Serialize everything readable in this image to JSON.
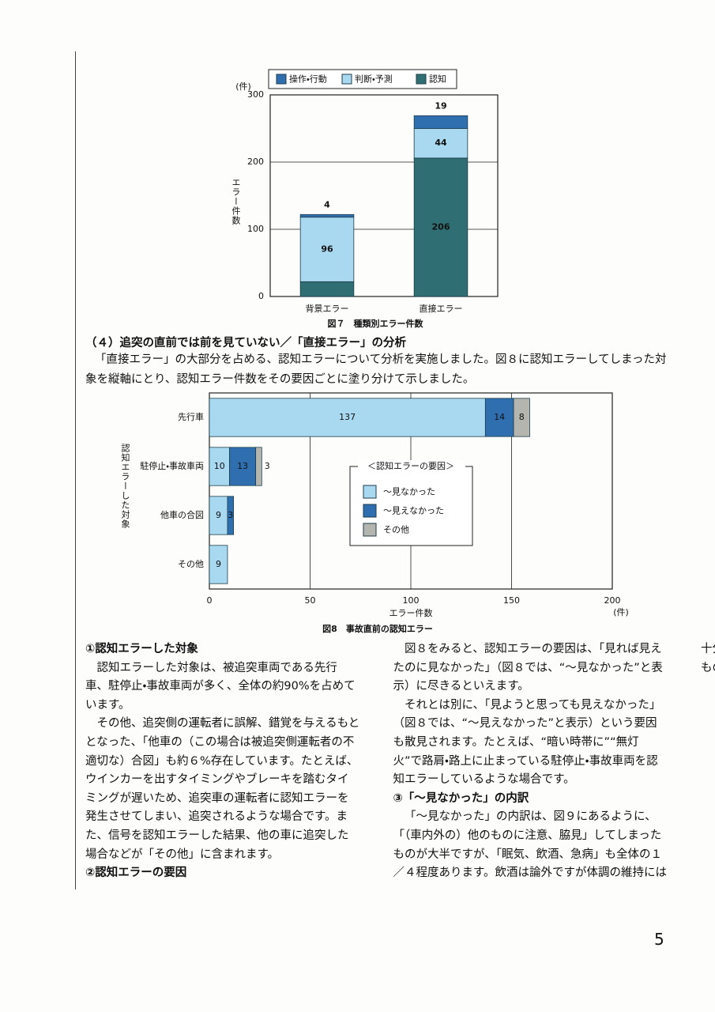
{
  "chart_data": [
    {
      "type": "bar",
      "orientation": "vertical",
      "stacked": true,
      "title": "図７　種類別エラー件数",
      "y_label": "エラー件数",
      "y_unit": "(件)",
      "categories": [
        "背景エラー",
        "直接エラー"
      ],
      "series": [
        {
          "name": "認知",
          "color": "#2f6e72",
          "values": [
            22,
            206
          ]
        },
        {
          "name": "判断・予測",
          "color": "#a9d9f0",
          "values": [
            96,
            44
          ]
        },
        {
          "name": "操作・行動",
          "color": "#2f6fb0",
          "values": [
            4,
            19
          ]
        }
      ],
      "ylim": [
        0,
        300
      ],
      "yticks": [
        0,
        100,
        200,
        300
      ],
      "grid": true
    },
    {
      "type": "bar",
      "orientation": "horizontal",
      "stacked": true,
      "title": "図8　事故直前の認知エラー",
      "x_label": "エラー件数",
      "x_unit": "(件)",
      "y_label": "認知エラーした対象",
      "legend_title": "＜認知エラーの要因＞",
      "categories": [
        "先行車",
        "駐停止・事故車両",
        "他車の合図",
        "その他"
      ],
      "series": [
        {
          "name": "～見なかった",
          "color": "#a9d9f0",
          "values": [
            137,
            10,
            9,
            9
          ]
        },
        {
          "name": "～見えなかった",
          "color": "#2f6fb0",
          "values": [
            14,
            13,
            3,
            null
          ]
        },
        {
          "name": "その他",
          "color": "#b5b5b0",
          "values": [
            8,
            3,
            null,
            null
          ]
        }
      ],
      "xlim": [
        0,
        200
      ],
      "xticks": [
        0,
        50,
        100,
        150,
        200
      ],
      "grid": true
    }
  ],
  "document": {
    "section_heading": "（４）追突の直前では前を見ていない／「直接エラー」の分析",
    "intro": "「直接エラー」の大部分を占める、認知エラーについて分析を実施しました。図８に認知エラーしてしまった対象を縦軸にとり、認知エラー件数をその要因ごとに塗り分けて示しました。",
    "body": [
      {
        "heading": "①認知エラーした対象"
      },
      {
        "paragraph": "認知エラーした対象は、被追突車両である先行車、駐停止・事故車両が多く、全体の約90%を占めています。"
      },
      {
        "paragraph": "その他、追突側の運転者に誤解、錯覚を与えるもととなった、「他車の（この場合は被追突側運転者の不適切な）合図」も約６%存在しています。たとえば、ウインカーを出すタイミングやブレーキを踏むタイミングが遅いため、追突車の運転者に認知エラーを発生させてしまい、追突されるような場合です。また、信号を認知エラーした結果、他の車に追突した場合などが「その他」に含まれます。"
      },
      {
        "heading": "②認知エラーの要因"
      },
      {
        "paragraph": "図８をみると、認知エラーの要因は、「見れば見えたのに見なかった」（図８では、“～見なかった”と表示）に尽きるといえます。"
      },
      {
        "paragraph": "それとは別に、「見ようと思っても見えなかった」（図８では、“～見えなかった”と表示）という要因も散見されます。たとえば、“暗い時帯に”“無灯火”で路肩・路上に止まっている駐停止・事故車両を認知エラーしているような場合です。"
      },
      {
        "heading": "③「～見なかった」の内訳"
      },
      {
        "paragraph": "「～見なかった」の内訳は、図９にあるように、「（車内外の）他のものに注意、脇見」してしまったものが大半ですが、「眠気、飲酒、急病」も全体の１／４程度あります。飲酒は論外ですが体調の維持には十分心掛け、眠気などを催すことがないようにしたいものです。"
      }
    ],
    "page_number": "5"
  }
}
